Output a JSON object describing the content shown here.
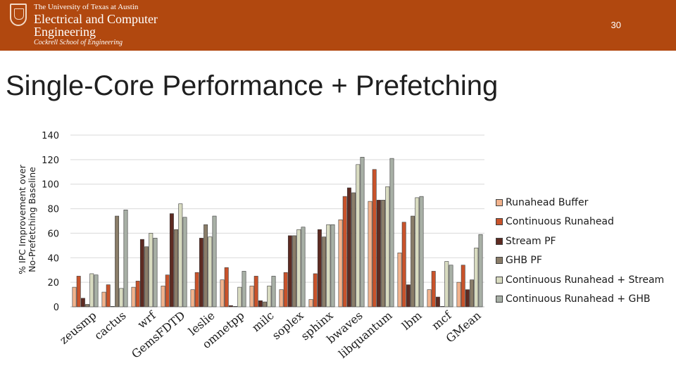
{
  "header": {
    "university": "The University of Texas at Austin",
    "dept_line1": "Electrical and Computer",
    "dept_line2": "Engineering",
    "school": "Cockrell School of Engineering",
    "page_number": "30",
    "banner_color": "#b1480f"
  },
  "slide": {
    "title": "Single-Core Performance + Prefetching"
  },
  "chart_data": {
    "type": "bar",
    "title": "",
    "xlabel": "",
    "ylabel": [
      "% IPC Improvement over",
      "No-Prefetching Baseline"
    ],
    "ylim": [
      0,
      140
    ],
    "yticks": [
      0,
      20,
      40,
      60,
      80,
      100,
      120,
      140
    ],
    "grid": true,
    "legend_position": "right",
    "categories": [
      "zeusmp",
      "cactus",
      "wrf",
      "GemsFDTD",
      "leslie",
      "omnetpp",
      "milc",
      "soplex",
      "sphinx",
      "bwaves",
      "libquantum",
      "lbm",
      "mcf",
      "GMean"
    ],
    "series": [
      {
        "name": "Runahead Buffer",
        "color": "#f2b38d",
        "values": [
          16,
          12,
          16,
          17,
          14,
          22,
          17,
          14,
          6,
          71,
          86,
          44,
          14,
          20
        ]
      },
      {
        "name": "Continuous Runahead",
        "color": "#c9532b",
        "values": [
          25,
          18,
          21,
          26,
          28,
          32,
          25,
          28,
          27,
          90,
          112,
          69,
          29,
          34
        ]
      },
      {
        "name": "Stream PF",
        "color": "#5e2b22",
        "values": [
          7,
          0,
          55,
          76,
          56,
          1,
          5,
          58,
          63,
          97,
          87,
          18,
          8,
          14
        ]
      },
      {
        "name": "GHB PF",
        "color": "#8a7d69",
        "values": [
          2,
          74,
          49,
          63,
          67,
          0,
          4,
          58,
          57,
          93,
          87,
          74,
          0,
          22
        ]
      },
      {
        "name": "Continuous Runahead + Stream",
        "color": "#d8dbc0",
        "values": [
          27,
          15,
          60,
          84,
          57,
          16,
          17,
          63,
          67,
          116,
          98,
          89,
          37,
          48
        ]
      },
      {
        "name": "Continuous Runahead + GHB",
        "color": "#a8b0a6",
        "values": [
          26,
          79,
          56,
          73,
          74,
          29,
          25,
          65,
          67,
          122,
          121,
          90,
          34,
          59
        ]
      }
    ]
  }
}
